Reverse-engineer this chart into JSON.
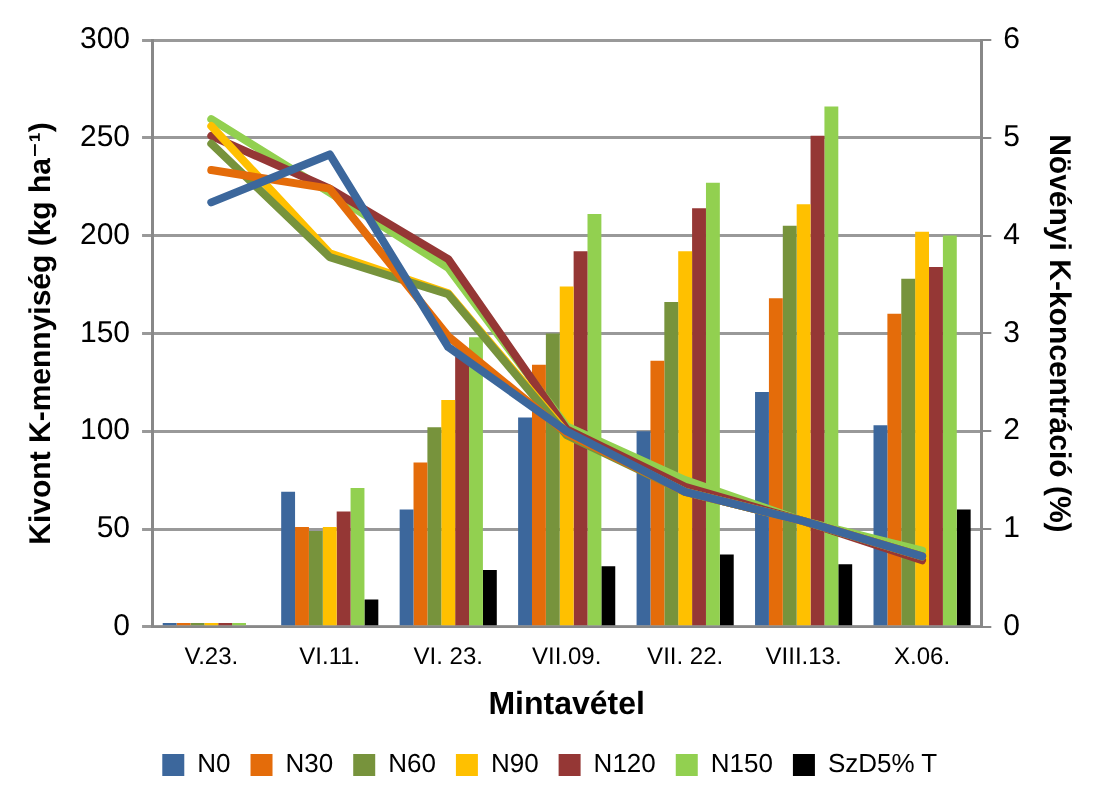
{
  "chart_data": {
    "type": "bar",
    "xlabel": "Mintavétel",
    "ylabel": "Kivont K-mennyiség (kg ha⁻¹)",
    "y2label": "Növényi K-koncentráció (%)",
    "categories": [
      "V.23.",
      "VI.11.",
      "VI. 23.",
      "VII.09.",
      "VII. 22.",
      "VIII.13.",
      "X.06."
    ],
    "ylim": [
      0,
      300
    ],
    "yticks": [
      0,
      50,
      100,
      150,
      200,
      250,
      300
    ],
    "y2lim": [
      0,
      6
    ],
    "y2ticks": [
      0,
      1,
      2,
      3,
      4,
      5,
      6
    ],
    "grid": "y",
    "legend": "bottom",
    "series": [
      {
        "name": "N0",
        "color": "#3c679c",
        "values": [
          2,
          69,
          60,
          107,
          100,
          120,
          103
        ]
      },
      {
        "name": "N30",
        "color": "#e46c0a",
        "values": [
          2,
          51,
          84,
          134,
          136,
          168,
          160
        ]
      },
      {
        "name": "N60",
        "color": "#77933c",
        "values": [
          2,
          49,
          102,
          150,
          166,
          205,
          178
        ]
      },
      {
        "name": "N90",
        "color": "#ffc000",
        "values": [
          2,
          51,
          116,
          174,
          192,
          216,
          202
        ]
      },
      {
        "name": "N120",
        "color": "#953735",
        "values": [
          2,
          59,
          138,
          192,
          214,
          251,
          184
        ]
      },
      {
        "name": "N150",
        "color": "#92d050",
        "values": [
          2,
          71,
          148,
          211,
          227,
          266,
          200
        ]
      },
      {
        "name": "SzD5% T",
        "color": "#000000",
        "values": [
          null,
          14,
          29,
          31,
          37,
          32,
          60
        ]
      },
      {
        "type": "line",
        "axis": "y2",
        "color": "#3c679c",
        "values": [
          4.34,
          4.83,
          2.86,
          2.0,
          1.38,
          1.08,
          0.72
        ]
      },
      {
        "type": "line",
        "axis": "y2",
        "color": "#e46c0a",
        "values": [
          4.67,
          4.48,
          2.97,
          1.98,
          1.38,
          1.08,
          0.72
        ]
      },
      {
        "type": "line",
        "axis": "y2",
        "color": "#77933c",
        "values": [
          4.94,
          3.78,
          3.4,
          1.96,
          1.38,
          1.08,
          0.72
        ]
      },
      {
        "type": "line",
        "axis": "y2",
        "color": "#ffc000",
        "values": [
          5.12,
          3.82,
          3.41,
          1.98,
          1.38,
          1.08,
          0.72
        ]
      },
      {
        "type": "line",
        "axis": "y2",
        "color": "#953735",
        "values": [
          5.02,
          4.48,
          3.76,
          2.02,
          1.43,
          1.08,
          0.68
        ]
      },
      {
        "type": "line",
        "axis": "y2",
        "color": "#92d050",
        "values": [
          5.19,
          4.44,
          3.67,
          2.05,
          1.5,
          1.08,
          0.78
        ]
      }
    ]
  }
}
